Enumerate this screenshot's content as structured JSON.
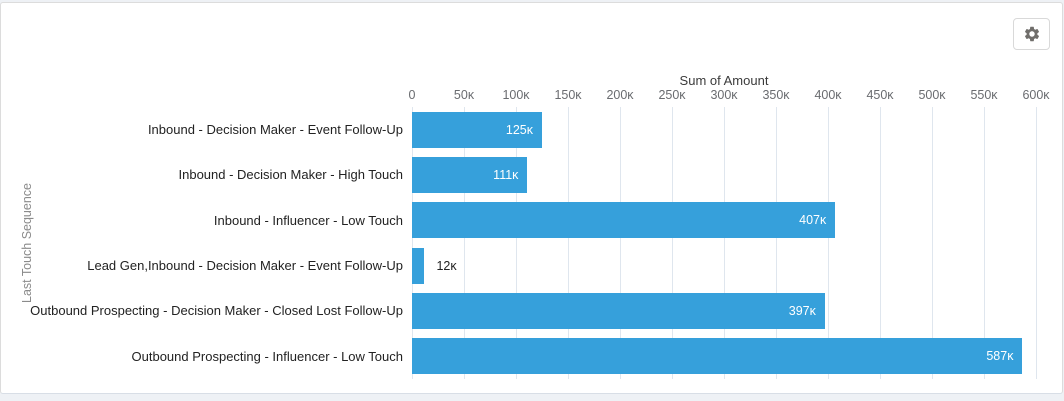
{
  "toolbar": {
    "settings_button": {
      "icon": "gear-icon"
    }
  },
  "chart_data": {
    "type": "bar",
    "orientation": "horizontal",
    "title": "Sum of Amount",
    "xlabel": "Sum of Amount",
    "ylabel": "Last Touch Sequence",
    "categories": [
      "Inbound - Decision Maker - Event Follow-Up",
      "Inbound - Decision Maker - High Touch",
      "Inbound - Influencer - Low Touch",
      "Lead Gen,Inbound - Decision Maker - Event Follow-Up",
      "Outbound Prospecting - Decision Maker - Closed Lost Follow-Up",
      "Outbound Prospecting - Influencer - Low Touch"
    ],
    "values": [
      125000,
      111000,
      407000,
      12000,
      397000,
      587000
    ],
    "value_labels": [
      "125ᴋ",
      "111ᴋ",
      "407ᴋ",
      "12ᴋ",
      "397ᴋ",
      "587ᴋ"
    ],
    "x_ticks": {
      "labels": [
        "0",
        "50ᴋ",
        "100ᴋ",
        "150ᴋ",
        "200ᴋ",
        "250ᴋ",
        "300ᴋ",
        "350ᴋ",
        "400ᴋ",
        "450ᴋ",
        "500ᴋ",
        "550ᴋ",
        "600ᴋ"
      ],
      "values": [
        0,
        50000,
        100000,
        150000,
        200000,
        250000,
        300000,
        350000,
        400000,
        450000,
        500000,
        550000,
        600000
      ]
    },
    "xlim": [
      0,
      600000
    ],
    "grid": true,
    "legend": false,
    "colors": {
      "bar": "#36a0db",
      "bar_label_inside": "#ffffff",
      "bar_label_outside": "#222222",
      "gridline": "#dfe6ee"
    }
  }
}
